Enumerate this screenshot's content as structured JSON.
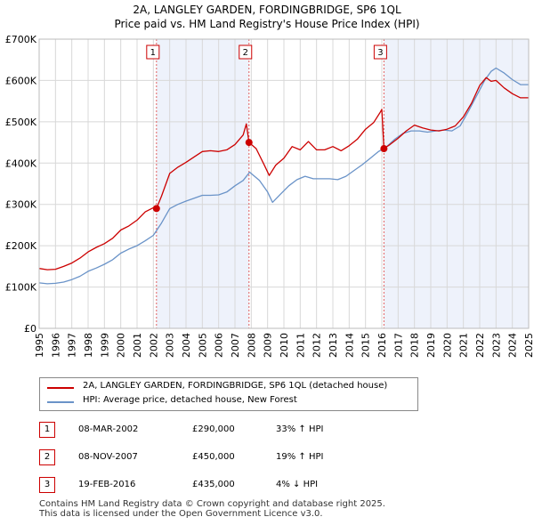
{
  "title": "2A, LANGLEY GARDEN, FORDINGBRIDGE, SP6 1QL",
  "subtitle": "Price paid vs. HM Land Registry's House Price Index (HPI)",
  "colors": {
    "price": "#cc0000",
    "hpi": "#6a93c8",
    "shade": "#eef2fb",
    "grid": "#d8d8d8"
  },
  "chart_data": {
    "type": "line",
    "ylim": [
      0,
      700000
    ],
    "xlim": [
      1995,
      2025
    ],
    "y_ticks": [
      0,
      100000,
      200000,
      300000,
      400000,
      500000,
      600000,
      700000
    ],
    "y_tick_labels": [
      "£0",
      "£100K",
      "£200K",
      "£300K",
      "£400K",
      "£500K",
      "£600K",
      "£700K"
    ],
    "x_ticks": [
      "1995",
      "1996",
      "1997",
      "1998",
      "1999",
      "2000",
      "2001",
      "2002",
      "2003",
      "2004",
      "2005",
      "2006",
      "2007",
      "2008",
      "2009",
      "2010",
      "2011",
      "2012",
      "2013",
      "2014",
      "2015",
      "2016",
      "2017",
      "2018",
      "2019",
      "2020",
      "2021",
      "2022",
      "2023",
      "2024",
      "2025"
    ],
    "series": [
      {
        "name": "2A, LANGLEY GARDEN, FORDINGBRIDGE, SP6 1QL (detached house)",
        "x": [
          1995.0,
          1995.5,
          1996.0,
          1996.5,
          1997.0,
          1997.5,
          1998.0,
          1998.5,
          1999.0,
          1999.5,
          2000.0,
          2000.5,
          2001.0,
          2001.5,
          2002.0,
          2002.19,
          2002.5,
          2003.0,
          2003.5,
          2004.0,
          2004.5,
          2005.0,
          2005.5,
          2006.0,
          2006.5,
          2007.0,
          2007.5,
          2007.7,
          2007.86,
          2008.3,
          2008.8,
          2009.1,
          2009.5,
          2010.0,
          2010.5,
          2011.0,
          2011.5,
          2012.0,
          2012.5,
          2013.0,
          2013.5,
          2014.0,
          2014.5,
          2015.0,
          2015.5,
          2015.9,
          2016.0,
          2016.13,
          2016.5,
          2017.0,
          2017.5,
          2018.0,
          2018.5,
          2019.0,
          2019.5,
          2020.0,
          2020.5,
          2021.0,
          2021.5,
          2022.0,
          2022.4,
          2022.7,
          2023.0,
          2023.5,
          2024.0,
          2024.5,
          2025.0
        ],
        "values": [
          145000,
          142000,
          143000,
          150000,
          158000,
          170000,
          185000,
          196000,
          205000,
          218000,
          238000,
          248000,
          262000,
          282000,
          292000,
          290000,
          320000,
          375000,
          390000,
          402000,
          415000,
          428000,
          430000,
          428000,
          432000,
          445000,
          468000,
          495000,
          450000,
          435000,
          395000,
          370000,
          395000,
          412000,
          440000,
          432000,
          452000,
          432000,
          432000,
          440000,
          430000,
          442000,
          458000,
          482000,
          498000,
          523000,
          530000,
          435000,
          445000,
          460000,
          478000,
          492000,
          485000,
          480000,
          478000,
          482000,
          490000,
          512000,
          545000,
          588000,
          607000,
          598000,
          600000,
          582000,
          568000,
          558000,
          558000
        ]
      },
      {
        "name": "HPI: Average price, detached house, New Forest",
        "x": [
          1995.0,
          1995.5,
          1996.0,
          1996.5,
          1997.0,
          1997.5,
          1998.0,
          1998.5,
          1999.0,
          1999.5,
          2000.0,
          2000.5,
          2001.0,
          2001.5,
          2002.0,
          2002.5,
          2003.0,
          2003.5,
          2004.0,
          2004.5,
          2005.0,
          2005.5,
          2006.0,
          2006.5,
          2007.0,
          2007.5,
          2007.9,
          2008.5,
          2009.0,
          2009.3,
          2009.8,
          2010.3,
          2010.8,
          2011.3,
          2011.8,
          2012.3,
          2012.8,
          2013.3,
          2013.8,
          2014.3,
          2014.8,
          2015.3,
          2015.8,
          2016.3,
          2016.8,
          2017.3,
          2017.8,
          2018.3,
          2018.8,
          2019.3,
          2019.8,
          2020.3,
          2020.8,
          2021.3,
          2021.8,
          2022.3,
          2022.7,
          2023.0,
          2023.5,
          2024.0,
          2024.5,
          2025.0
        ],
        "values": [
          110000,
          108000,
          109000,
          112000,
          118000,
          126000,
          138000,
          146000,
          155000,
          166000,
          182000,
          192000,
          200000,
          212000,
          225000,
          255000,
          290000,
          300000,
          308000,
          315000,
          322000,
          322000,
          323000,
          330000,
          345000,
          358000,
          378000,
          358000,
          330000,
          305000,
          325000,
          345000,
          360000,
          368000,
          362000,
          362000,
          362000,
          360000,
          368000,
          382000,
          396000,
          412000,
          428000,
          440000,
          458000,
          472000,
          478000,
          478000,
          475000,
          478000,
          480000,
          478000,
          490000,
          525000,
          562000,
          600000,
          622000,
          630000,
          618000,
          602000,
          590000,
          590000
        ]
      }
    ],
    "sales": [
      {
        "num": "1",
        "x": 2002.19,
        "y": 290000
      },
      {
        "num": "2",
        "x": 2007.86,
        "y": 450000
      },
      {
        "num": "3",
        "x": 2016.13,
        "y": 435000
      }
    ]
  },
  "legend": {
    "price_label": "2A, LANGLEY GARDEN, FORDINGBRIDGE, SP6 1QL (detached house)",
    "hpi_label": "HPI: Average price, detached house, New Forest"
  },
  "sales_table": [
    {
      "num": "1",
      "date": "08-MAR-2002",
      "price": "£290,000",
      "hpi": "33% ↑ HPI"
    },
    {
      "num": "2",
      "date": "08-NOV-2007",
      "price": "£450,000",
      "hpi": "19% ↑ HPI"
    },
    {
      "num": "3",
      "date": "19-FEB-2016",
      "price": "£435,000",
      "hpi": "4% ↓ HPI"
    }
  ],
  "footer": {
    "line1": "Contains HM Land Registry data © Crown copyright and database right 2025.",
    "line2": "This data is licensed under the Open Government Licence v3.0."
  }
}
